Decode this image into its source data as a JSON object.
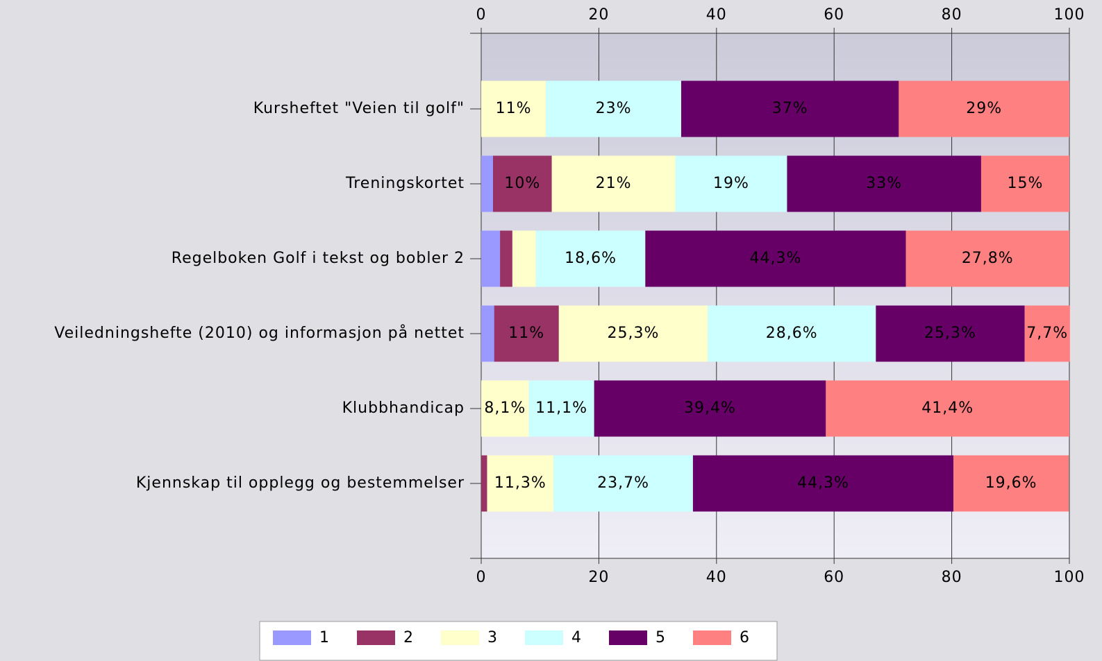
{
  "chart_data": {
    "type": "stacked_bar_horizontal",
    "categories": [
      "Kursheftet \"Veien til golf\"",
      "Treningskortet",
      "Regelboken Golf i tekst og bobler 2",
      "Veiledningshefte (2010) og informasjon på nettet",
      "Klubbhandicap",
      "Kjennskap til opplegg og bestemmelser"
    ],
    "series": [
      {
        "name": "1",
        "color": "#9999ff",
        "values": [
          0,
          2,
          3.2,
          2.2,
          0,
          0
        ],
        "value_labels": [
          null,
          null,
          null,
          null,
          null,
          null
        ]
      },
      {
        "name": "2",
        "color": "#993366",
        "values": [
          0,
          10,
          2.1,
          11,
          0,
          1
        ],
        "value_labels": [
          null,
          "10%",
          null,
          "11%",
          null,
          null
        ]
      },
      {
        "name": "3",
        "color": "#ffffcc",
        "values": [
          11,
          21,
          4,
          25.3,
          8.1,
          11.3
        ],
        "value_labels": [
          "11%",
          "21%",
          null,
          "25,3%",
          "8,1%",
          "11,3%"
        ]
      },
      {
        "name": "4",
        "color": "#ccffff",
        "values": [
          23,
          19,
          18.6,
          28.6,
          11.1,
          23.7
        ],
        "value_labels": [
          "23%",
          "19%",
          "18,6%",
          "28,6%",
          "11,1%",
          "23,7%"
        ]
      },
      {
        "name": "5",
        "color": "#660066",
        "values": [
          37,
          33,
          44.3,
          25.3,
          39.4,
          44.3
        ],
        "value_labels": [
          "37%",
          "33%",
          "44,3%",
          "25,3%",
          "39,4%",
          "44,3%"
        ]
      },
      {
        "name": "6",
        "color": "#ff8080",
        "values": [
          29,
          15,
          27.8,
          7.7,
          41.4,
          19.6
        ],
        "value_labels": [
          "29%",
          "15%",
          "27,8%",
          "7,7%",
          "41,4%",
          "19,6%"
        ]
      }
    ],
    "xlim": [
      0,
      100
    ],
    "xticks": [
      0,
      20,
      40,
      60,
      80,
      100
    ],
    "grid": true
  }
}
